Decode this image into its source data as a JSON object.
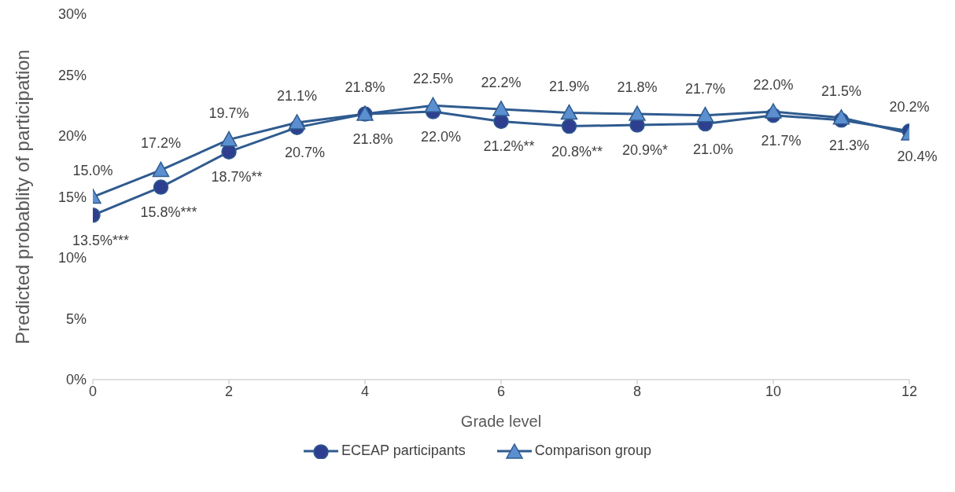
{
  "chart_data": {
    "type": "line",
    "xlabel": "Grade level",
    "ylabel": "Predicted probablity of participation",
    "x": [
      0,
      1,
      2,
      3,
      4,
      5,
      6,
      7,
      8,
      9,
      10,
      11,
      12
    ],
    "xlim": [
      0,
      12
    ],
    "xticks": [
      0,
      2,
      4,
      6,
      8,
      10,
      12
    ],
    "ylim": [
      0,
      30
    ],
    "yticks": [
      {
        "value": 0,
        "label": "0%"
      },
      {
        "value": 5,
        "label": "5%"
      },
      {
        "value": 10,
        "label": "10%"
      },
      {
        "value": 15,
        "label": "15%"
      },
      {
        "value": 20,
        "label": "20%"
      },
      {
        "value": 25,
        "label": "25%"
      },
      {
        "value": 30,
        "label": "30%"
      }
    ],
    "legend": "bottom",
    "line_style": "solid",
    "series": [
      {
        "name": "ECEAP participants",
        "color": "#2e3f8f",
        "marker": "circle",
        "values": [
          13.5,
          15.8,
          18.7,
          20.7,
          21.8,
          22.0,
          21.2,
          20.8,
          20.9,
          21.0,
          21.7,
          21.3,
          20.4
        ],
        "value_labels": [
          "13.5%***",
          "15.8%***",
          "18.7%**",
          "20.7%",
          "21.8%",
          "22.0%",
          "21.2%**",
          "20.8%**",
          "20.9%*",
          "21.0%",
          "21.7%",
          "21.3%",
          "20.4%"
        ]
      },
      {
        "name": "Comparison group",
        "color": "#5b8fd0",
        "marker": "triangle",
        "values": [
          15.0,
          17.2,
          19.7,
          21.1,
          21.8,
          22.5,
          22.2,
          21.9,
          21.8,
          21.7,
          22.0,
          21.5,
          20.2
        ],
        "value_labels": [
          "15.0%",
          "17.2%",
          "19.7%",
          "21.1%",
          "21.8%",
          "22.5%",
          "22.2%",
          "21.9%",
          "21.8%",
          "21.7%",
          "22.0%",
          "21.5%",
          "20.2%"
        ]
      }
    ]
  }
}
